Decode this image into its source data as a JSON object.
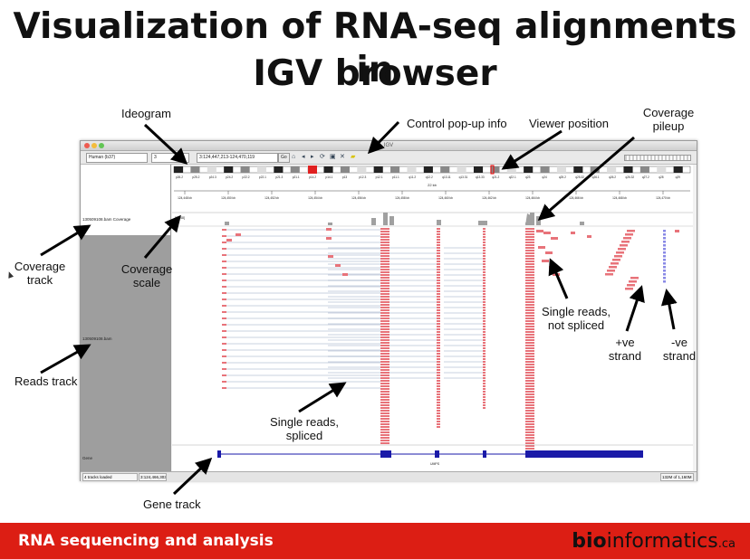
{
  "slide": {
    "title_line1": "Visualization of RNA-seq alignments in",
    "title_line2": "IGV browser"
  },
  "annotations": {
    "ideogram": "Ideogram",
    "control_popup": "Control pop-up info",
    "viewer_position": "Viewer position",
    "coverage_pileup_1": "Coverage",
    "coverage_pileup_2": "pileup",
    "coverage_track_1": "Coverage",
    "coverage_track_2": "track",
    "coverage_scale_1": "Coverage",
    "coverage_scale_2": "scale",
    "reads_track": "Reads track",
    "single_not_spliced_1": "Single reads,",
    "single_not_spliced_2": "not spliced",
    "pos_strand_1": "+ve",
    "pos_strand_2": "strand",
    "neg_strand_1": "-ve",
    "neg_strand_2": "strand",
    "single_spliced_1": "Single reads,",
    "single_spliced_2": "spliced",
    "gene_track": "Gene track"
  },
  "igv": {
    "window_title": "IGV",
    "genome": "Human (b37)",
    "chromosome": "3",
    "locus": "3:124,447,213-124,470,119",
    "go_label": "Go",
    "scale_label": "22 kb",
    "coverage_track_label": "130509108.bam Coverage",
    "reads_track_label": "130509108.bam",
    "gene_track_label": "Gene",
    "gene_name": "UMPS",
    "coverage_scale": "[0 - 48]",
    "status_tracks": "4 tracks loaded",
    "status_position": "3:124,466,303",
    "status_memory": "132M of 1,160M",
    "ruler_ticks": [
      "124,448 kb",
      "124,450 kb",
      "124,452 kb",
      "124,454 kb",
      "124,456 kb",
      "124,458 kb",
      "124,460 kb",
      "124,462 kb",
      "124,464 kb",
      "124,466 kb",
      "124,468 kb",
      "124,470 kb"
    ],
    "cytobands": [
      "p26.2",
      "p25.2",
      "p24.3",
      "p24.2",
      "p22.2",
      "p22.1",
      "p21.3",
      "p21.1",
      "p14.2",
      "p14.1",
      "p13",
      "p12.3",
      "p12.1",
      "p11.1",
      "q11.2",
      "q12.2",
      "q13.11",
      "q13.31",
      "q13.33",
      "q21.2",
      "q22.1",
      "q23",
      "q24",
      "q25.2",
      "q25.32",
      "q26.1",
      "q26.2",
      "q26.32",
      "q27.2",
      "q28",
      "q29"
    ]
  },
  "footer": {
    "course": "RNA sequencing and analysis",
    "logo_bold": "bio",
    "logo_rest": "informatics",
    "logo_tld": ".ca"
  },
  "colors": {
    "read_pos": "#e8737a",
    "read_neg": "#8a8ae6",
    "coverage": "#a0a0a0",
    "gene": "#1a1aa8",
    "footer": "#dc1e14"
  }
}
